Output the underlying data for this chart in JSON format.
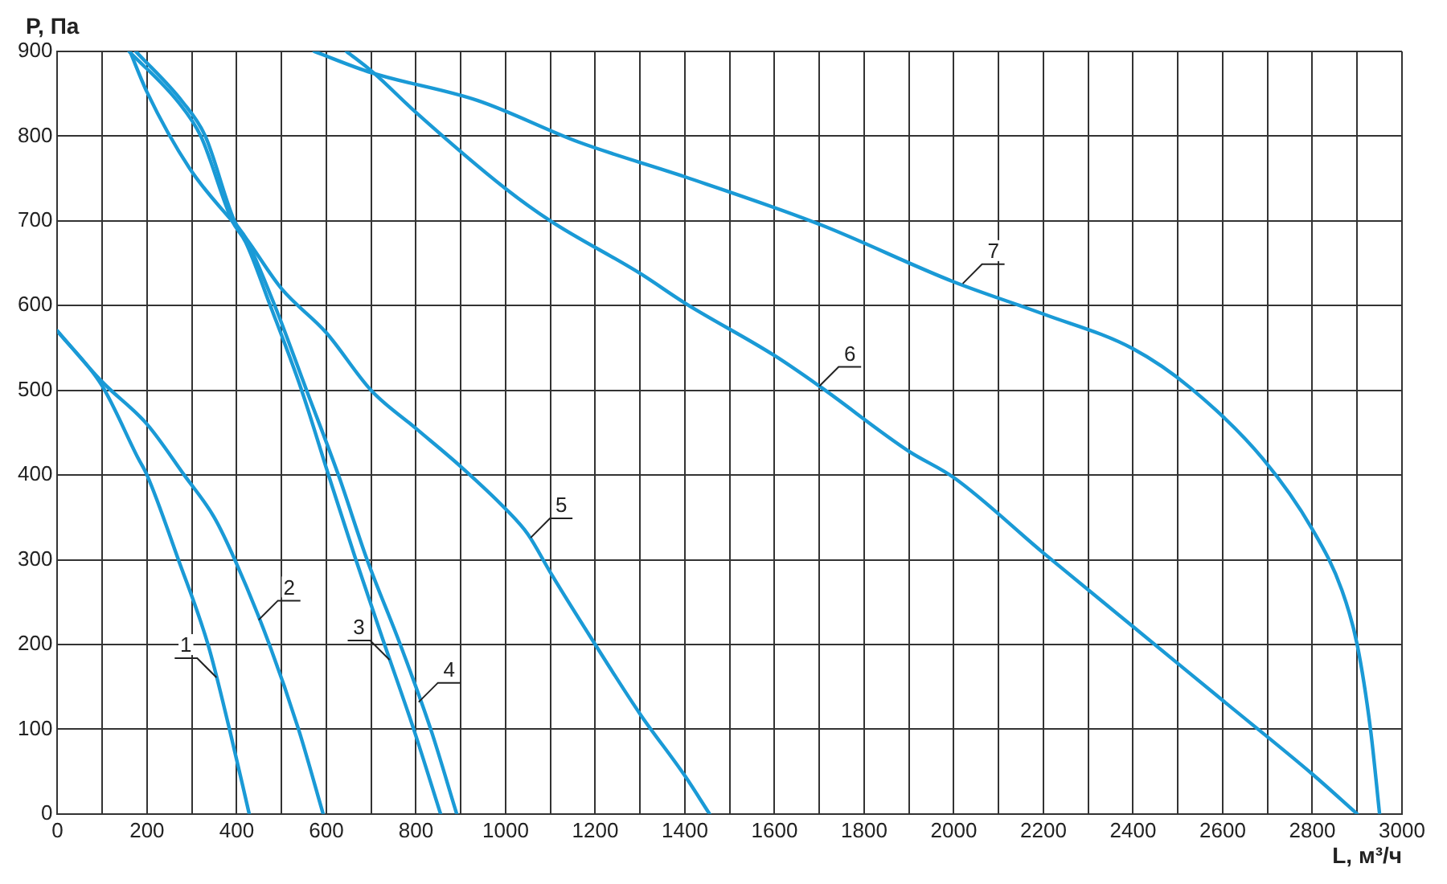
{
  "chart_data": {
    "type": "line",
    "xlabel": "L, м³/ч",
    "ylabel": "P, Па",
    "xlim": [
      0,
      3000
    ],
    "ylim": [
      0,
      900
    ],
    "xticks": [
      0,
      {
        "value": 100,
        "label": null
      },
      200,
      {
        "value": 300,
        "label": null
      },
      400,
      {
        "value": 500,
        "label": null
      },
      600,
      {
        "value": 700,
        "label": null
      },
      800,
      {
        "value": 900,
        "label": null
      },
      1000,
      {
        "value": 1100,
        "label": null
      },
      1200,
      {
        "value": 1300,
        "label": null
      },
      1400,
      {
        "value": 1500,
        "label": null
      },
      1600,
      {
        "value": 1700,
        "label": null
      },
      1800,
      {
        "value": 1900,
        "label": null
      },
      2000,
      {
        "value": 2100,
        "label": null
      },
      2200,
      {
        "value": 2300,
        "label": null
      },
      2400,
      {
        "value": 2500,
        "label": null
      },
      2600,
      {
        "value": 2700,
        "label": null
      },
      2800,
      {
        "value": 2900,
        "label": null
      },
      3000
    ],
    "yticks": [
      0,
      100,
      200,
      300,
      400,
      500,
      600,
      700,
      800,
      900
    ],
    "grid": true,
    "legend": false,
    "marker": "none",
    "line_style": "solid",
    "series": [
      {
        "color": "#1a9ad6",
        "x": [
          0,
          100,
          180,
          200,
          270,
          336,
          384,
          428
        ],
        "values": [
          570,
          505,
          420,
          400,
          300,
          200,
          100,
          0
        ]
      },
      {
        "color": "#1a9ad6",
        "x": [
          0,
          100,
          200,
          283,
          350,
          396,
          473,
          538,
          593
        ],
        "values": [
          570,
          510,
          460,
          400,
          350,
          300,
          200,
          100,
          0
        ]
      },
      {
        "color": "#1a9ad6",
        "x": [
          160,
          270,
          320,
          390,
          420,
          475,
          545,
          605,
          666,
          730,
          795,
          855
        ],
        "values": [
          900,
          840,
          800,
          700,
          675,
          600,
          500,
          400,
          300,
          200,
          100,
          0
        ]
      },
      {
        "color": "#1a9ad6",
        "x": [
          175,
          280,
          330,
          395,
          420,
          485,
          556,
          627,
          691,
          765,
          833,
          891
        ],
        "values": [
          900,
          840,
          800,
          700,
          680,
          600,
          500,
          400,
          300,
          200,
          100,
          0
        ]
      },
      {
        "color": "#1a9ad6",
        "x": [
          162,
          200,
          295,
          420,
          500,
          600,
          700,
          800,
          900,
          1000,
          1050,
          1100,
          1200,
          1300,
          1400,
          1455
        ],
        "values": [
          900,
          852,
          762,
          680,
          620,
          568,
          500,
          455,
          410,
          360,
          330,
          285,
          200,
          118,
          45,
          0
        ]
      },
      {
        "color": "#1a9ad6",
        "x": [
          645,
          705,
          800,
          1000,
          1100,
          1300,
          1400,
          1600,
          1700,
          1900,
          2000,
          2200,
          2400,
          2600,
          2800,
          2900
        ],
        "values": [
          900,
          875,
          828,
          738,
          700,
          638,
          603,
          541,
          505,
          428,
          397,
          308,
          221,
          134,
          47,
          0
        ]
      },
      {
        "color": "#1a9ad6",
        "x": [
          573,
          700,
          938,
          1163,
          1400,
          1700,
          2000,
          2200,
          2400,
          2530,
          2690,
          2800,
          2866,
          2900,
          2930,
          2950
        ],
        "values": [
          900,
          875,
          842,
          793,
          752,
          696,
          628,
          590,
          549,
          502,
          419,
          336,
          264,
          200,
          99,
          0
        ]
      }
    ],
    "annotations": [
      {
        "text": "1",
        "x": 355,
        "y": 161
      },
      {
        "text": "2",
        "x": 449,
        "y": 229
      },
      {
        "text": "3",
        "x": 741,
        "y": 182
      },
      {
        "text": "4",
        "x": 806,
        "y": 132
      },
      {
        "text": "5",
        "x": 1056,
        "y": 326
      },
      {
        "text": "6",
        "x": 1700,
        "y": 505
      },
      {
        "text": "7",
        "x": 2020,
        "y": 626
      }
    ]
  }
}
